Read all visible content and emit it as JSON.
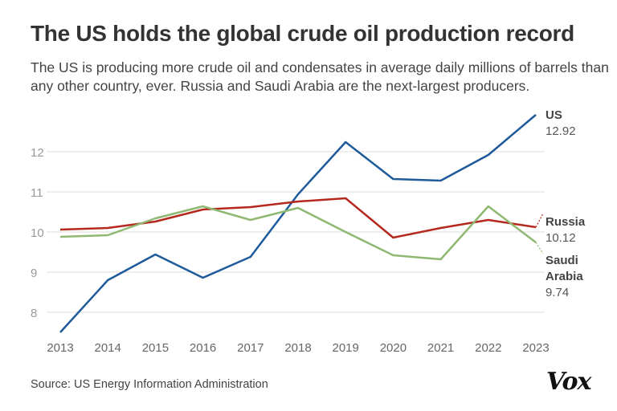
{
  "title": "The US holds the global crude oil production record",
  "subtitle": "The US is producing more crude oil and condensates in average daily millions of barrels than any other country, ever. Russia and Saudi Arabia are the next-largest producers.",
  "source": "Source: US Energy Information Administration",
  "logo": "Vox",
  "chart_data": {
    "type": "line",
    "x": [
      2013,
      2014,
      2015,
      2016,
      2017,
      2018,
      2019,
      2020,
      2021,
      2022,
      2023
    ],
    "yticks": [
      8,
      9,
      10,
      11,
      12
    ],
    "ylim": [
      7.5,
      13
    ],
    "grid": true,
    "series": [
      {
        "name": "US",
        "label_value": "12.92",
        "color": "#1f5a9a",
        "values": [
          7.5,
          8.8,
          9.44,
          8.86,
          9.38,
          10.94,
          12.24,
          11.32,
          11.28,
          11.92,
          12.92
        ]
      },
      {
        "name": "Russia",
        "label_value": "10.12",
        "color": "#b5281e",
        "values": [
          10.06,
          10.1,
          10.26,
          10.56,
          10.62,
          10.76,
          10.84,
          9.86,
          10.1,
          10.3,
          10.12
        ]
      },
      {
        "name": "Saudi Arabia",
        "label_value": "9.74",
        "color": "#8fb872",
        "values": [
          9.88,
          9.92,
          10.34,
          10.64,
          10.3,
          10.6,
          10.0,
          9.42,
          9.32,
          10.64,
          9.74
        ]
      }
    ]
  }
}
